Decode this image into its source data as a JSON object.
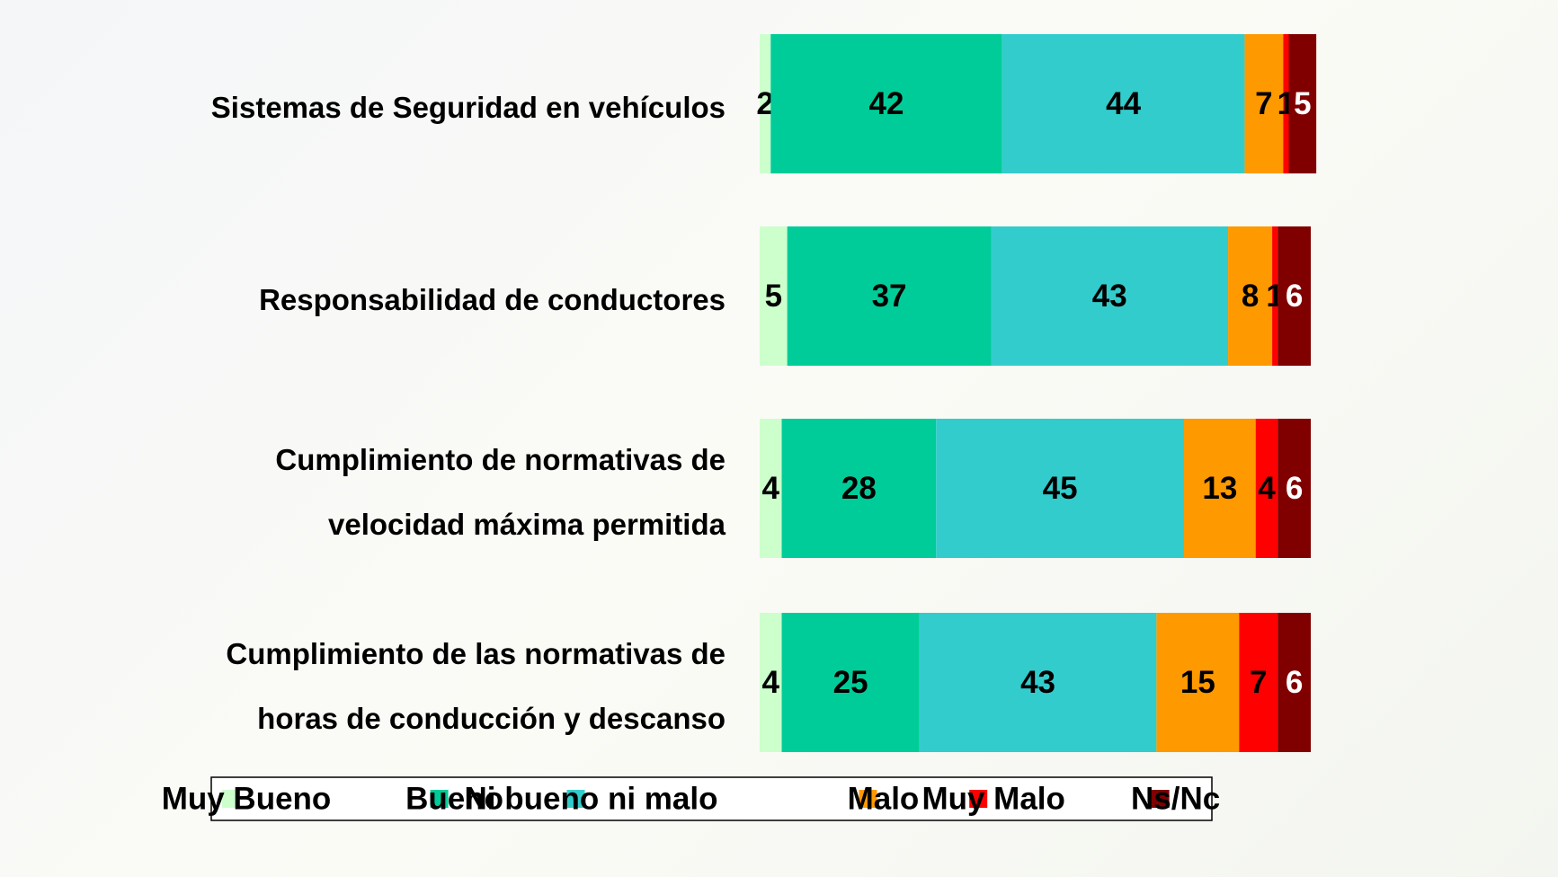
{
  "chart_data": {
    "type": "stacked-bar-horizontal",
    "categories": [
      "Sistemas de Seguridad en vehículos",
      "Responsabilidad de conductores",
      "Cumplimiento de normativas de velocidad máxima permitida",
      "Cumplimiento de las normativas de horas de conducción y descanso"
    ],
    "series": [
      {
        "name": "Muy Bueno",
        "color": "#ccffcc",
        "values": [
          2,
          5,
          4,
          4
        ]
      },
      {
        "name": "Bueno",
        "color": "#00cc99",
        "values": [
          42,
          37,
          28,
          25
        ]
      },
      {
        "name": "Ni bueno ni malo",
        "color": "#33cccc",
        "values": [
          44,
          43,
          45,
          43
        ]
      },
      {
        "name": "Malo",
        "color": "#ff9900",
        "values": [
          7,
          8,
          13,
          15
        ]
      },
      {
        "name": "Muy Malo",
        "color": "#ff0000",
        "values": [
          1,
          1,
          4,
          7
        ]
      },
      {
        "name": "Ns/Nc",
        "color": "#800000",
        "values": [
          5,
          6,
          6,
          6
        ]
      }
    ],
    "legend": "bottom"
  }
}
